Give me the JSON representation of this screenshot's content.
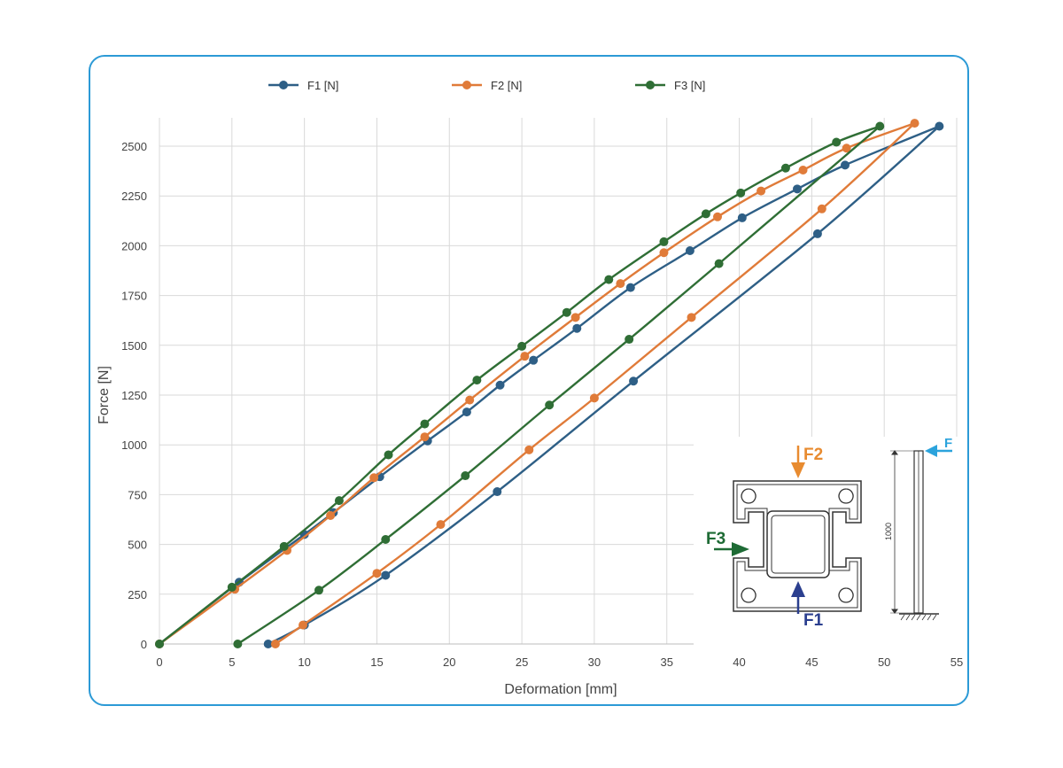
{
  "chart_data": {
    "type": "line",
    "xlabel": "Deformation [mm]",
    "ylabel": "Force [N]",
    "xlim": [
      0,
      55
    ],
    "ylim": [
      0,
      2600
    ],
    "x_ticks": [
      "0",
      "5",
      "10",
      "15",
      "20",
      "25",
      "30",
      "35",
      "40",
      "45",
      "50",
      "55"
    ],
    "y_ticks": [
      "0",
      "250",
      "500",
      "750",
      "1000",
      "1250",
      "1500",
      "1750",
      "2000",
      "2250",
      "2500"
    ],
    "grid": true,
    "legend_position": "top",
    "series": [
      {
        "name": "F1 [N]",
        "color": "#2e5f86",
        "loading": [
          [
            0,
            0
          ],
          [
            5.5,
            310
          ],
          [
            10,
            550
          ],
          [
            12,
            660
          ],
          [
            15.2,
            840
          ],
          [
            18.5,
            1020
          ],
          [
            21.2,
            1165
          ],
          [
            23.5,
            1300
          ],
          [
            25.8,
            1425
          ],
          [
            28.8,
            1585
          ],
          [
            32.5,
            1790
          ],
          [
            36.6,
            1975
          ],
          [
            40.2,
            2140
          ],
          [
            44,
            2285
          ],
          [
            47.3,
            2405
          ],
          [
            53.8,
            2600
          ]
        ],
        "unloading": [
          [
            53.8,
            2600
          ],
          [
            45.4,
            2060
          ],
          [
            32.7,
            1320
          ],
          [
            23.3,
            765
          ],
          [
            15.6,
            345
          ],
          [
            10,
            95
          ],
          [
            7.5,
            0
          ]
        ]
      },
      {
        "name": "F2 [N]",
        "color": "#e07b39",
        "loading": [
          [
            0,
            0
          ],
          [
            5.2,
            275
          ],
          [
            8.8,
            470
          ],
          [
            11.8,
            645
          ],
          [
            14.8,
            835
          ],
          [
            18.3,
            1040
          ],
          [
            21.4,
            1225
          ],
          [
            25.2,
            1445
          ],
          [
            28.7,
            1640
          ],
          [
            31.8,
            1810
          ],
          [
            34.8,
            1965
          ],
          [
            38.5,
            2145
          ],
          [
            41.5,
            2275
          ],
          [
            44.4,
            2380
          ],
          [
            47.4,
            2490
          ],
          [
            52.1,
            2615
          ]
        ],
        "unloading": [
          [
            52.1,
            2615
          ],
          [
            45.7,
            2185
          ],
          [
            36.7,
            1640
          ],
          [
            30,
            1235
          ],
          [
            25.5,
            975
          ],
          [
            19.4,
            600
          ],
          [
            15,
            355
          ],
          [
            9.9,
            95
          ],
          [
            8,
            0
          ]
        ]
      },
      {
        "name": "F3 [N]",
        "color": "#2f6e35",
        "loading": [
          [
            0,
            0
          ],
          [
            5,
            285
          ],
          [
            8.6,
            490
          ],
          [
            12.4,
            720
          ],
          [
            15.8,
            950
          ],
          [
            18.3,
            1105
          ],
          [
            21.9,
            1325
          ],
          [
            25,
            1495
          ],
          [
            28.1,
            1665
          ],
          [
            31,
            1830
          ],
          [
            34.8,
            2020
          ],
          [
            37.7,
            2160
          ],
          [
            40.1,
            2265
          ],
          [
            43.2,
            2390
          ],
          [
            46.7,
            2520
          ],
          [
            49.7,
            2600
          ]
        ],
        "unloading": [
          [
            49.7,
            2600
          ],
          [
            38.6,
            1910
          ],
          [
            32.4,
            1530
          ],
          [
            26.9,
            1200
          ],
          [
            21.1,
            845
          ],
          [
            15.6,
            525
          ],
          [
            11,
            270
          ],
          [
            5.4,
            0
          ]
        ]
      }
    ],
    "annotations": {
      "F2": "F2",
      "F3": "F3",
      "F1": "F1",
      "F": "F",
      "length": "1000"
    },
    "annotation_colors": {
      "F1": "#2b3f8f",
      "F2": "#e88b30",
      "F3": "#1e6b35",
      "F": "#2ba3dc"
    }
  }
}
